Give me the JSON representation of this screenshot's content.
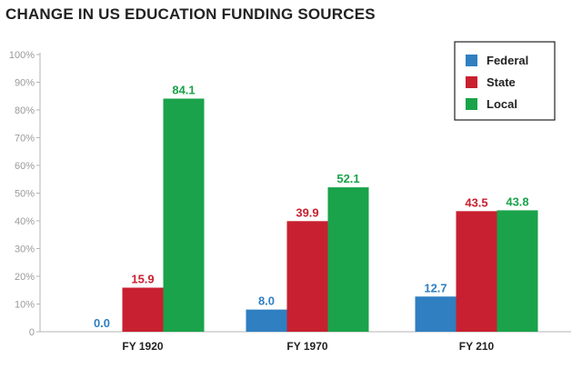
{
  "chart_data": {
    "type": "bar",
    "title": "CHANGE IN US EDUCATION FUNDING SOURCES",
    "categories": [
      "FY 1920",
      "FY 1970",
      "FY 210"
    ],
    "series": [
      {
        "name": "Federal",
        "values": [
          0.0,
          8.0,
          12.7
        ],
        "color": "#2f7fc1",
        "label_color": "#2f7fc1"
      },
      {
        "name": "State",
        "values": [
          15.9,
          39.9,
          43.5
        ],
        "color": "#c82030",
        "label_color": "#c82030"
      },
      {
        "name": "Local",
        "values": [
          84.1,
          52.1,
          43.8
        ],
        "color": "#1aa34a",
        "label_color": "#1aa34a"
      }
    ],
    "data_labels": [
      [
        "0.0",
        "8.0",
        "12.7"
      ],
      [
        "15.9",
        "39.9",
        "43.5"
      ],
      [
        "84.1",
        "52.1",
        "43.8"
      ]
    ],
    "y_ticks": [
      "0",
      "10%",
      "20%",
      "30%",
      "40%",
      "50%",
      "60%",
      "70%",
      "80%",
      "90%",
      "100%"
    ],
    "ylim": [
      0,
      100
    ],
    "grid": false,
    "legend_position": "top-right"
  }
}
